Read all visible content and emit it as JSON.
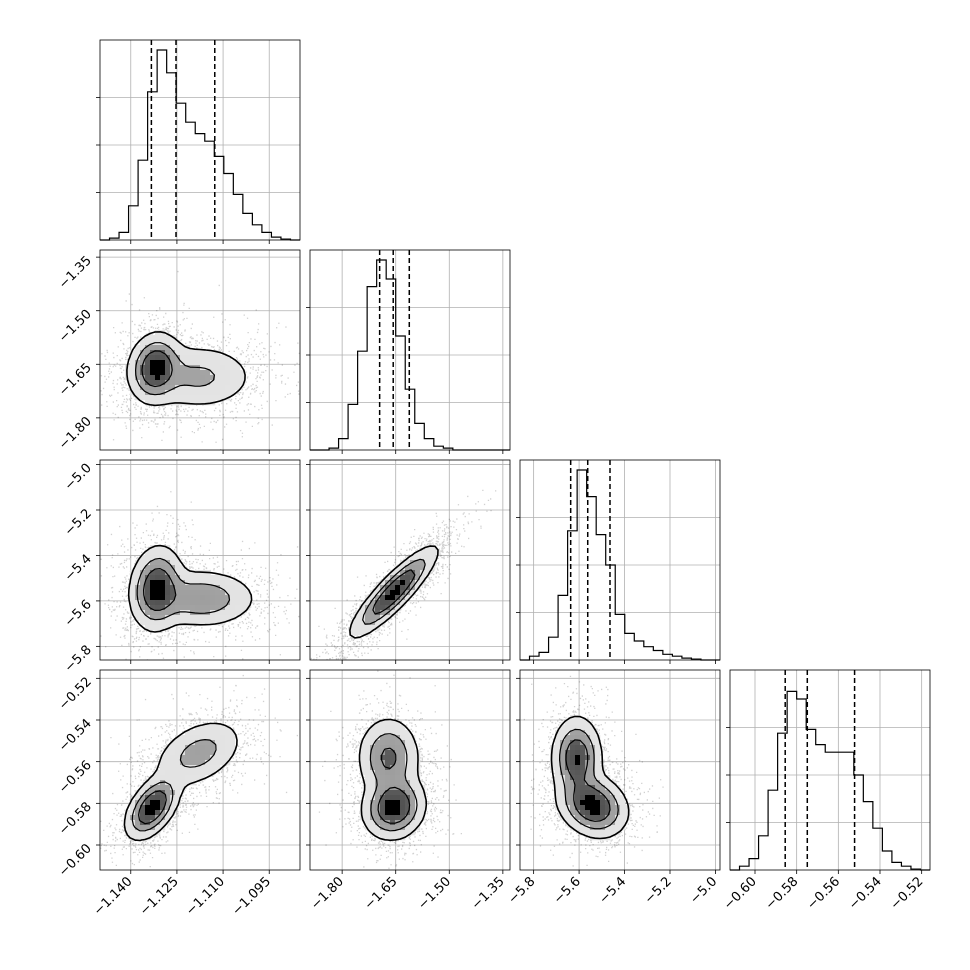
{
  "chart_data": {
    "type": "corner",
    "grid": true,
    "colors": {
      "axes": "#000000",
      "grid": "#b0b0b0",
      "hist": "#000000",
      "density": "#000000",
      "contour": "#000000"
    },
    "parameters": [
      {
        "range": [
          -1.15,
          -1.085
        ],
        "ticks": [
          -1.14,
          -1.125,
          -1.11,
          -1.095
        ],
        "tick_labels": [
          "−1.140",
          "−1.125",
          "−1.110",
          "−1.095"
        ],
        "quantiles": [
          -1.1333,
          -1.1253,
          -1.1127
        ]
      },
      {
        "range": [
          -1.89,
          -1.33
        ],
        "ticks": [
          -1.8,
          -1.65,
          -1.5,
          -1.35
        ],
        "tick_labels": [
          "−1.80",
          "−1.65",
          "−1.50",
          "−1.35"
        ],
        "quantiles": [
          -1.695,
          -1.657,
          -1.612
        ]
      },
      {
        "range": [
          -5.86,
          -4.98
        ],
        "ticks": [
          -5.8,
          -5.6,
          -5.4,
          -5.2,
          -5.0
        ],
        "tick_labels": [
          "−5.8",
          "−5.6",
          "−5.4",
          "−5.2",
          "−5.0"
        ],
        "quantiles": [
          -5.637,
          -5.562,
          -5.464
        ]
      },
      {
        "range": [
          -0.612,
          -0.516
        ],
        "ticks": [
          -0.6,
          -0.58,
          -0.56,
          -0.54,
          -0.52
        ],
        "tick_labels": [
          "−0.60",
          "−0.58",
          "−0.56",
          "−0.54",
          "−0.52"
        ],
        "quantiles": [
          -0.5855,
          -0.5749,
          -0.5522
        ]
      }
    ],
    "hist1d": [
      {
        "edges": [
          -1.15,
          -1.085
        ],
        "counts": [
          0,
          0.01,
          0.04,
          0.18,
          0.42,
          0.78,
          1.0,
          0.88,
          0.72,
          0.62,
          0.56,
          0.52,
          0.44,
          0.35,
          0.24,
          0.14,
          0.08,
          0.04,
          0.015,
          0.005,
          0
        ]
      },
      {
        "edges": [
          -1.89,
          -1.33
        ],
        "counts": [
          0,
          0,
          0.01,
          0.06,
          0.24,
          0.52,
          0.86,
          1.0,
          0.9,
          0.6,
          0.32,
          0.14,
          0.06,
          0.02,
          0.01,
          0,
          0,
          0,
          0,
          0,
          0
        ]
      },
      {
        "edges": [
          -5.86,
          -4.98
        ],
        "counts": [
          0,
          0.02,
          0.04,
          0.12,
          0.34,
          0.68,
          1.0,
          0.86,
          0.66,
          0.5,
          0.24,
          0.14,
          0.1,
          0.07,
          0.05,
          0.03,
          0.02,
          0.01,
          0.005,
          0,
          0
        ]
      },
      {
        "edges": [
          -0.612,
          -0.516
        ],
        "counts": [
          0,
          0.02,
          0.06,
          0.18,
          0.42,
          0.72,
          0.94,
          0.9,
          0.74,
          0.66,
          0.62,
          0.62,
          0.62,
          0.5,
          0.36,
          0.22,
          0.1,
          0.04,
          0.02,
          0.005,
          0
        ]
      }
    ],
    "hist2d": [
      {
        "i": 1,
        "j": 0,
        "components": [
          {
            "mean": [
              -1.132,
              -1.66
            ],
            "sd": [
              0.004,
              0.045
            ],
            "rho": 0.1,
            "w": 0.55
          },
          {
            "mean": [
              -1.118,
              -1.685
            ],
            "sd": [
              0.009,
              0.045
            ],
            "rho": 0.0,
            "w": 0.45
          }
        ]
      },
      {
        "i": 2,
        "j": 0,
        "components": [
          {
            "mean": [
              -1.1315,
              -5.545
            ],
            "sd": [
              0.004,
              0.085
            ],
            "rho": 0.1,
            "w": 0.55
          },
          {
            "mean": [
              -1.117,
              -5.59
            ],
            "sd": [
              0.0085,
              0.06
            ],
            "rho": 0.0,
            "w": 0.45
          }
        ]
      },
      {
        "i": 3,
        "j": 0,
        "components": [
          {
            "mean": [
              -1.133,
              -0.582
            ],
            "sd": [
              0.004,
              0.007
            ],
            "rho": 0.5,
            "w": 0.55
          },
          {
            "mean": [
              -1.118,
              -0.556
            ],
            "sd": [
              0.007,
              0.008
            ],
            "rho": 0.4,
            "w": 0.45
          }
        ]
      },
      {
        "i": 2,
        "j": 1,
        "components": [
          {
            "mean": [
              -1.655,
              -5.56
            ],
            "sd": [
              0.055,
              0.09
            ],
            "rho": 0.88,
            "w": 1.0
          }
        ]
      },
      {
        "i": 3,
        "j": 1,
        "components": [
          {
            "mean": [
              -1.655,
              -0.582
            ],
            "sd": [
              0.04,
              0.007
            ],
            "rho": 0.1,
            "w": 0.55
          },
          {
            "mean": [
              -1.67,
              -0.558
            ],
            "sd": [
              0.04,
              0.009
            ],
            "rho": 0.0,
            "w": 0.45
          }
        ]
      },
      {
        "i": 3,
        "j": 2,
        "components": [
          {
            "mean": [
              -5.54,
              -0.581
            ],
            "sd": [
              0.07,
              0.007
            ],
            "rho": -0.2,
            "w": 0.55
          },
          {
            "mean": [
              -5.61,
              -0.558
            ],
            "sd": [
              0.05,
              0.009
            ],
            "rho": 0.0,
            "w": 0.45
          }
        ]
      }
    ]
  }
}
